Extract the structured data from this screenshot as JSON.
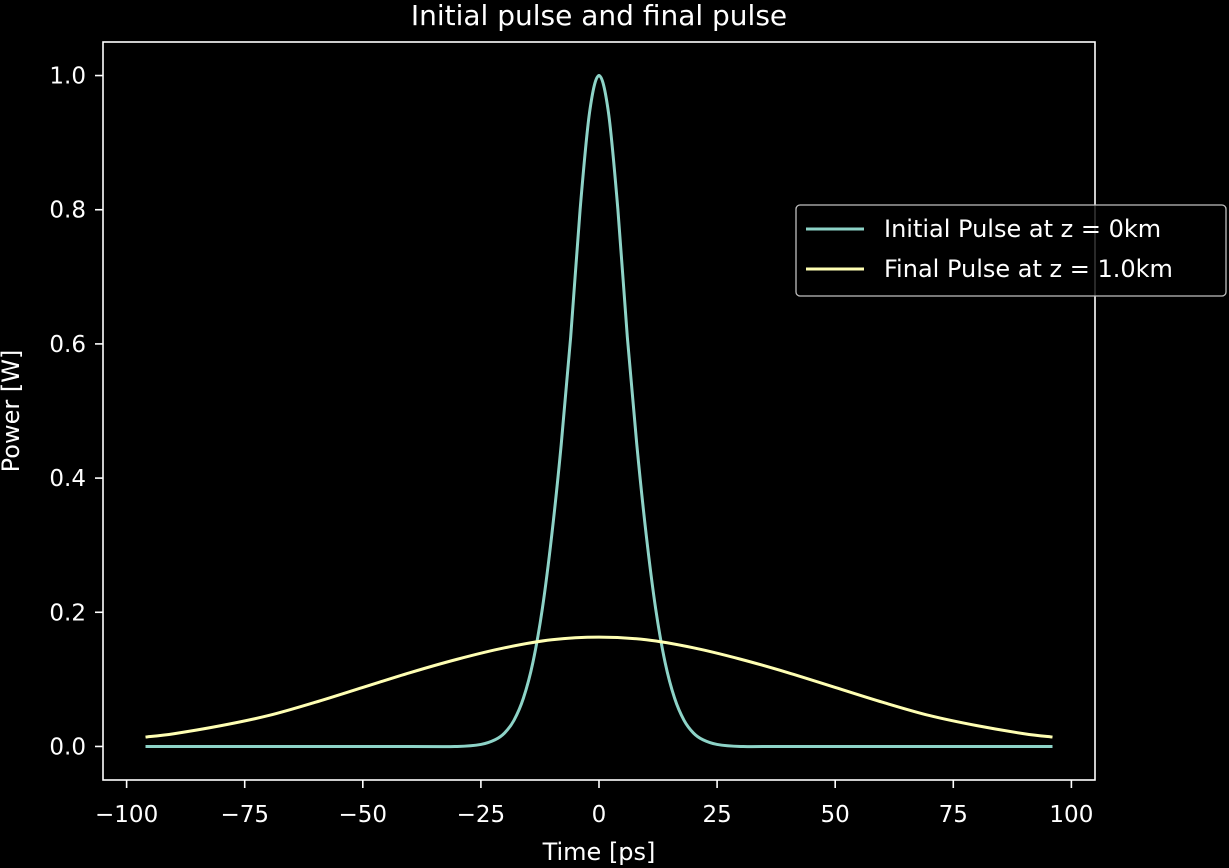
{
  "chart_data": {
    "type": "line",
    "title": "Initial pulse and final pulse",
    "xlabel": "Time [ps]",
    "ylabel": "Power [W]",
    "xlim": [
      -105,
      105
    ],
    "ylim": [
      -0.05,
      1.05
    ],
    "xticks": [
      -100,
      -75,
      -50,
      -25,
      0,
      25,
      50,
      75,
      100
    ],
    "xtick_labels": [
      "−100",
      "−75",
      "−50",
      "−25",
      "0",
      "25",
      "50",
      "75",
      "100"
    ],
    "yticks": [
      0.0,
      0.2,
      0.4,
      0.6,
      0.8,
      1.0
    ],
    "ytick_labels": [
      "0.0",
      "0.2",
      "0.4",
      "0.6",
      "0.8",
      "1.0"
    ],
    "grid": false,
    "legend_position": "right",
    "series": [
      {
        "name": "Initial Pulse at z = 0km",
        "color": "#8dd3c7",
        "x": [
          -96,
          -40,
          -30,
          -25,
          -22,
          -20,
          -18,
          -16,
          -14,
          -12,
          -10,
          -8,
          -6,
          -4,
          -2,
          0,
          2,
          4,
          6,
          8,
          10,
          12,
          14,
          16,
          18,
          20,
          22,
          25,
          30,
          40,
          96
        ],
        "y": [
          0.0,
          0.0,
          0.0,
          0.003,
          0.01,
          0.02,
          0.039,
          0.072,
          0.125,
          0.205,
          0.315,
          0.45,
          0.61,
          0.8,
          0.945,
          1.0,
          0.945,
          0.8,
          0.61,
          0.45,
          0.315,
          0.205,
          0.125,
          0.072,
          0.039,
          0.02,
          0.01,
          0.003,
          0.0,
          0.0,
          0.0
        ]
      },
      {
        "name": "Final Pulse at z = 1.0km",
        "color": "#ffffb3",
        "x": [
          -96,
          -90,
          -80,
          -70,
          -60,
          -50,
          -40,
          -30,
          -20,
          -10,
          0,
          10,
          20,
          30,
          40,
          50,
          60,
          70,
          80,
          90,
          96
        ],
        "y": [
          0.014,
          0.019,
          0.031,
          0.046,
          0.066,
          0.088,
          0.11,
          0.13,
          0.147,
          0.159,
          0.163,
          0.159,
          0.147,
          0.13,
          0.11,
          0.088,
          0.066,
          0.046,
          0.031,
          0.019,
          0.014
        ]
      }
    ]
  }
}
